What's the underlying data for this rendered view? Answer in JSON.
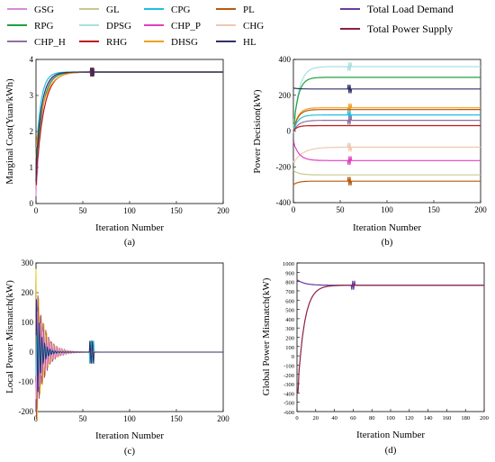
{
  "legend": {
    "rows": [
      [
        {
          "label": "GSG",
          "color": "#d88ad8"
        },
        {
          "label": "GL",
          "color": "#c8c890"
        },
        {
          "label": "CPG",
          "color": "#20c0e0"
        },
        {
          "label": "PL",
          "color": "#b85a10"
        }
      ],
      [
        {
          "label": "RPG",
          "color": "#20a040"
        },
        {
          "label": "DPSG",
          "color": "#a8e0e0"
        },
        {
          "label": "CHP_P",
          "color": "#e040c0"
        },
        {
          "label": "CHG",
          "color": "#f0c8b0"
        }
      ],
      [
        {
          "label": "CHP_H",
          "color": "#9070a0"
        },
        {
          "label": "RHG",
          "color": "#c01818"
        },
        {
          "label": "DHSG",
          "color": "#f0a020"
        },
        {
          "label": "HL",
          "color": "#303068"
        }
      ]
    ],
    "extra": [
      {
        "label": "Total Load Demand",
        "color": "#6a3aa0"
      },
      {
        "label": "Total Power Supply",
        "color": "#8a2040"
      }
    ]
  },
  "chart_data": [
    {
      "id": "a",
      "type": "line",
      "caption": "(a)",
      "xlabel": "Iteration Number",
      "ylabel": "Marginal Cost(Yuan/kWh)",
      "xlim": [
        0,
        200
      ],
      "ylim": [
        0,
        4
      ],
      "xticks": [
        "0",
        "50",
        "100",
        "150",
        "200"
      ],
      "yticks": [
        "0",
        "1",
        "2",
        "3",
        "4"
      ],
      "series": [
        {
          "color": "#d88ad8",
          "start": 0.2,
          "final": 3.65,
          "tau": 6
        },
        {
          "color": "#20c0e0",
          "start": 1.2,
          "final": 3.65,
          "tau": 5
        },
        {
          "color": "#20a040",
          "start": 0.9,
          "final": 3.65,
          "tau": 7
        },
        {
          "color": "#c01818",
          "start": 0.6,
          "final": 3.65,
          "tau": 8
        },
        {
          "color": "#f0a020",
          "start": 1.5,
          "final": 3.65,
          "tau": 9
        },
        {
          "color": "#303068",
          "start": 1.0,
          "final": 3.65,
          "tau": 6
        }
      ]
    },
    {
      "id": "b",
      "type": "line",
      "caption": "(b)",
      "xlabel": "Iteration Number",
      "ylabel": "Power Decision(kW)",
      "xlim": [
        0,
        200
      ],
      "ylim": [
        -400,
        400
      ],
      "xticks": [
        "0",
        "50",
        "100",
        "150",
        "200"
      ],
      "yticks": [
        "-400",
        "-200",
        "0",
        "200",
        "400"
      ],
      "series": [
        {
          "color": "#a8e0e0",
          "start": 0,
          "final": 360,
          "tau": 6
        },
        {
          "color": "#20a040",
          "start": 0,
          "final": 300,
          "tau": 5
        },
        {
          "color": "#303068",
          "start": 240,
          "final": 235,
          "tau": 5
        },
        {
          "color": "#f0a020",
          "start": 0,
          "final": 130,
          "tau": 5
        },
        {
          "color": "#b85a10",
          "start": 0,
          "final": 120,
          "tau": 5
        },
        {
          "color": "#20c0e0",
          "start": 0,
          "final": 90,
          "tau": 5
        },
        {
          "color": "#9070a0",
          "start": 0,
          "final": 60,
          "tau": 6
        },
        {
          "color": "#c01818",
          "start": 0,
          "final": 30,
          "tau": 4
        },
        {
          "color": "#f0c8b0",
          "start": -180,
          "final": -90,
          "tau": 10
        },
        {
          "color": "#e040c0",
          "start": -60,
          "final": -165,
          "tau": 6
        },
        {
          "color": "#c8c890",
          "start": -220,
          "final": -245,
          "tau": 6
        },
        {
          "color": "#b85a10",
          "start": -300,
          "final": -280,
          "tau": 5
        }
      ]
    },
    {
      "id": "c",
      "type": "line",
      "caption": "(c)",
      "xlabel": "Iteration Number",
      "ylabel": "Local Power Mismatch(kW)",
      "xlim": [
        0,
        200
      ],
      "ylim": [
        -200,
        300
      ],
      "xticks": [
        "0",
        "50",
        "100",
        "150",
        "200"
      ],
      "yticks": [
        "-200",
        "-100",
        "0",
        "100",
        "200",
        "300"
      ],
      "series": [
        {
          "color": "#f0d000",
          "amp": 280,
          "tau": 8
        },
        {
          "color": "#b85a10",
          "amp": 220,
          "tau": 7
        },
        {
          "color": "#a040a0",
          "amp": 240,
          "tau": 9
        },
        {
          "color": "#f0a0e0",
          "amp": 160,
          "tau": 10
        },
        {
          "color": "#20c0e0",
          "amp": 120,
          "tau": 6
        },
        {
          "color": "#303068",
          "amp": 200,
          "tau": 5
        }
      ]
    },
    {
      "id": "d",
      "type": "line",
      "caption": "(d)",
      "xlabel": "Iteration Number",
      "ylabel": "Global Power Mismatch(kW)",
      "xlim": [
        0,
        200
      ],
      "ylim": [
        -600,
        1000
      ],
      "xticks": [
        "0",
        "20",
        "40",
        "60",
        "80",
        "100",
        "120",
        "140",
        "160",
        "180",
        "200"
      ],
      "yticks": [
        "-600",
        "-500",
        "-400",
        "-300",
        "-200",
        "-100",
        "0",
        "100",
        "200",
        "300",
        "400",
        "500",
        "600",
        "700",
        "800",
        "900",
        "1000"
      ],
      "series": [
        {
          "name": "Total Load Demand",
          "color": "#6a3aa0",
          "start": 820,
          "final": 760,
          "tau": 8
        },
        {
          "name": "Total Power Supply",
          "color": "#8a2040",
          "start": -520,
          "final": 760,
          "tau": 7
        }
      ]
    }
  ]
}
